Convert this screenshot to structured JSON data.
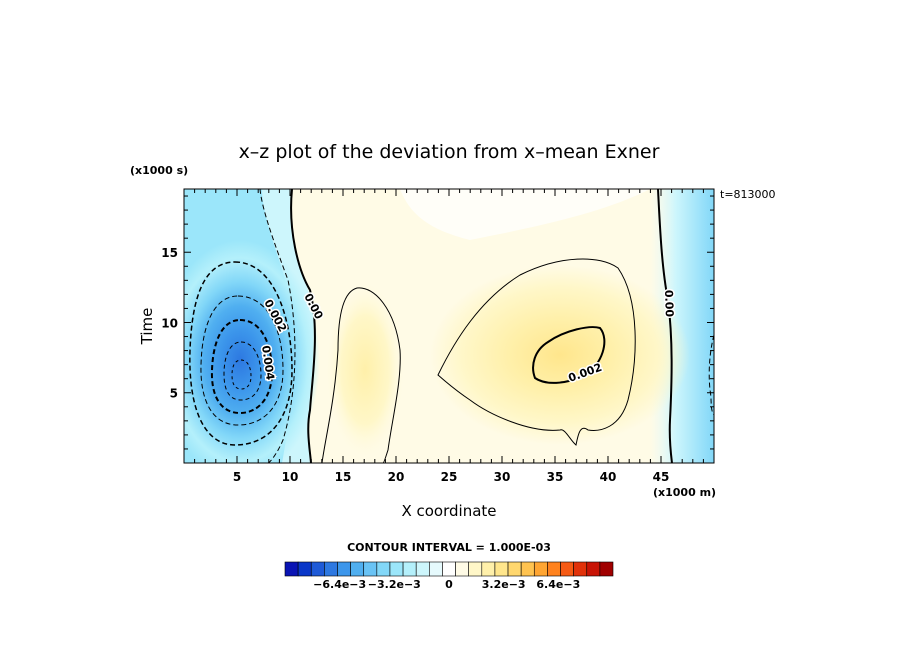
{
  "chart_data": {
    "type": "heatmap",
    "title": "x–z plot of the deviation from x–mean Exner",
    "xlabel": "X coordinate",
    "ylabel": "Time",
    "x_unit": "(x1000 m)",
    "y_unit": "(x1000 s)",
    "time_stamp": "t=813000",
    "xlim": [
      0,
      50
    ],
    "ylim": [
      0,
      19.5
    ],
    "x_ticks": [
      5,
      10,
      15,
      20,
      25,
      30,
      35,
      40,
      45
    ],
    "y_ticks": [
      5,
      10,
      15
    ],
    "contour_interval_text": "CONTOUR INTERVAL = 1.000E-03",
    "contour_labels": [
      "0.002",
      "0.00",
      "0.004",
      "0.00",
      "0.002",
      "0.00"
    ],
    "fields": [
      {
        "kind": "low",
        "x": 5.5,
        "y": 6.5,
        "value": -0.0064
      },
      {
        "kind": "high",
        "x": 36.5,
        "y": 7.5,
        "value": 0.0028
      },
      {
        "kind": "high",
        "x": 18,
        "y": 8,
        "value": 0.0014
      },
      {
        "kind": "low",
        "x": 49.5,
        "y": 9,
        "value": -0.0014
      }
    ],
    "colorbar": {
      "min": -0.0096,
      "max": 0.0096,
      "ticks": [
        "−6.4e−3",
        "−3.2e−3",
        "0",
        "3.2e−3",
        "6.4e−3"
      ],
      "tick_values": [
        -0.0064,
        -0.0032,
        0,
        0.0032,
        0.0064
      ],
      "colors": [
        "#0a14b4",
        "#0a37c8",
        "#1e5ad7",
        "#2d78e1",
        "#3c96eb",
        "#50aff0",
        "#69c3f5",
        "#82d7f8",
        "#9be6fa",
        "#b4f0fb",
        "#cdf6fc",
        "#e6fafd",
        "#ffffff",
        "#fffbe6",
        "#fff7c8",
        "#fff0aa",
        "#ffe68c",
        "#ffd76e",
        "#ffc350",
        "#ffa532",
        "#ff821e",
        "#f55a14",
        "#e1320a",
        "#c81405",
        "#a00000"
      ]
    }
  }
}
